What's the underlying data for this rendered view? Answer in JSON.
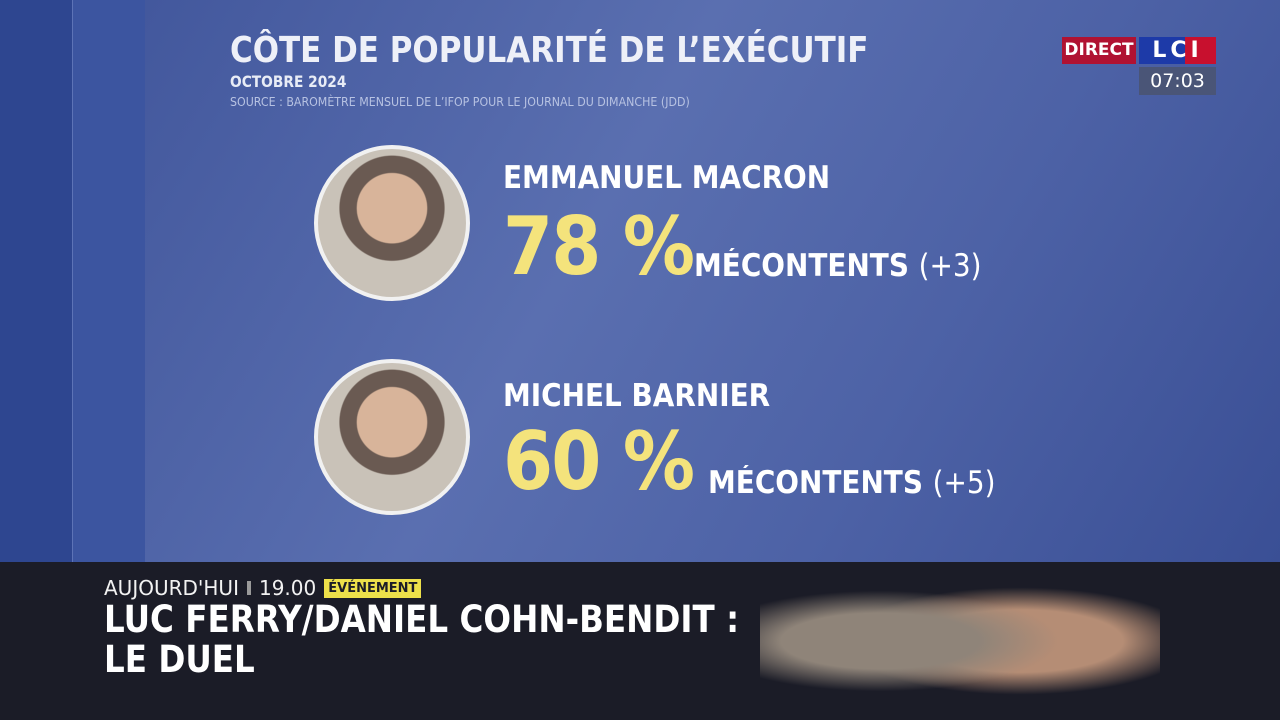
{
  "header": {
    "title": "CÔTE DE POPULARITÉ DE L’EXÉCUTIF",
    "subtitle": "OCTOBRE 2024",
    "source": "SOURCE : BAROMÈTRE MENSUEL DE L’IFOP POUR LE JOURNAL DU DIMANCHE (JDD)"
  },
  "channel": {
    "direct": "DIRECT",
    "logo": "LCI",
    "time": "07:03"
  },
  "people": [
    {
      "name": "EMMANUEL MACRON",
      "percent": "78 %",
      "label": "MÉCONTENTS",
      "change": "(+3)"
    },
    {
      "name": "MICHEL BARNIER",
      "percent": "60 %",
      "label": "MÉCONTENTS",
      "change": "(+5)"
    }
  ],
  "banner": {
    "day": "AUJOURD'HUI",
    "time": "19.00",
    "badge": "ÉVÉNEMENT",
    "headline_line1": "LUC FERRY/DANIEL COHN-BENDIT :",
    "headline_line2": "LE DUEL"
  },
  "colors": {
    "accent": "#f4e37c",
    "background": "#4d62a6",
    "direct": "#b01232"
  }
}
